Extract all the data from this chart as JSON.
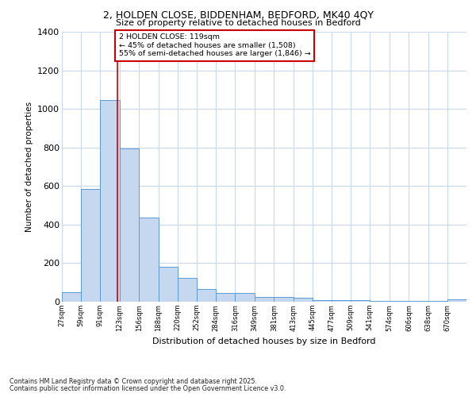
{
  "title": "2, HOLDEN CLOSE, BIDDENHAM, BEDFORD, MK40 4QY",
  "subtitle": "Size of property relative to detached houses in Bedford",
  "xlabel": "Distribution of detached houses by size in Bedford",
  "ylabel": "Number of detached properties",
  "bar_color": "#c5d8f0",
  "bar_edge_color": "#5b9bd5",
  "background_color": "#ffffff",
  "grid_color": "#c8d8f0",
  "bins": [
    27,
    59,
    91,
    123,
    156,
    188,
    220,
    252,
    284,
    316,
    349,
    381,
    413,
    445,
    477,
    509,
    541,
    574,
    606,
    638,
    670
  ],
  "values": [
    50,
    585,
    1045,
    795,
    435,
    180,
    125,
    65,
    45,
    45,
    25,
    25,
    20,
    10,
    10,
    7,
    5,
    5,
    5,
    5,
    12
  ],
  "bin_width": 32,
  "red_line_x": 119,
  "annotation_text": "2 HOLDEN CLOSE: 119sqm\n← 45% of detached houses are smaller (1,508)\n55% of semi-detached houses are larger (1,846) →",
  "annotation_box_color": "#ffffff",
  "annotation_border_color": "#cc0000",
  "ylim": [
    0,
    1400
  ],
  "yticks": [
    0,
    200,
    400,
    600,
    800,
    1000,
    1200,
    1400
  ],
  "footer_line1": "Contains HM Land Registry data © Crown copyright and database right 2025.",
  "footer_line2": "Contains public sector information licensed under the Open Government Licence v3.0."
}
